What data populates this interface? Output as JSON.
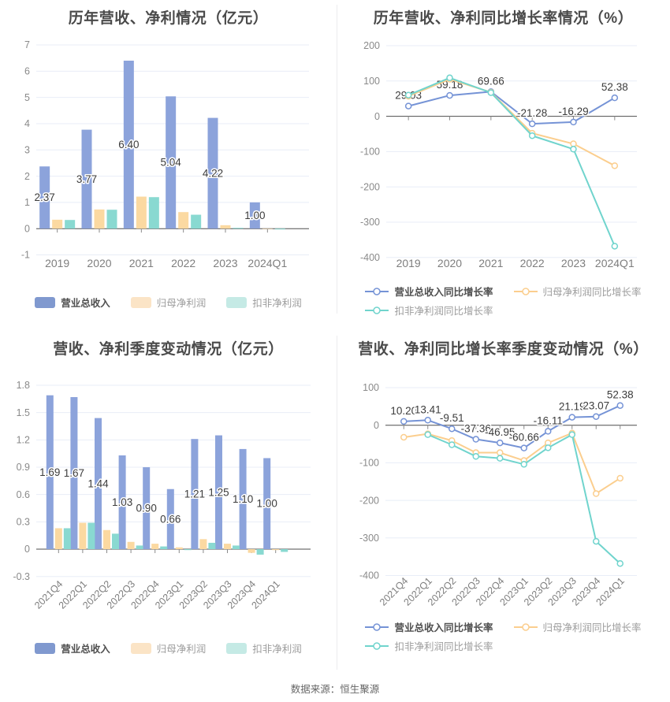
{
  "page": {
    "background": "#ffffff",
    "footer": "数据来源：恒生聚源"
  },
  "colors": {
    "bar_blue": "#8CA3DB",
    "bar_orange": "#FBD9A1",
    "bar_teal": "#89D9D1",
    "line_blue": "#7593D6",
    "line_orange": "#FBCE8E",
    "line_teal": "#70D4CD",
    "legend_blue": "#8099CF",
    "legend_orange_light": "#FBE4C6",
    "legend_teal_light": "#C5EAE5",
    "grid_line": "#E8EDF7",
    "zero_axis": "#4D4D4D",
    "tick_label": "#8A8A8A",
    "category_label": "#7E7E7E",
    "data_label": "#3C3C3C",
    "title_text": "#4A4A4A"
  },
  "chart_data": [
    {
      "id": "yearly-bar",
      "type": "bar",
      "title": "历年营收、净利情况（亿元）",
      "ylabel": "",
      "xlabel": "",
      "grid": true,
      "legend_position": "bottom",
      "categories": [
        "2019",
        "2020",
        "2021",
        "2022",
        "2023",
        "2024Q1"
      ],
      "y_axis": {
        "min": -1,
        "max": 7,
        "step": 1
      },
      "series": [
        {
          "name": "营业总收入",
          "color": "#8CA3DB",
          "legend_color": "#8099CF",
          "labeled": true,
          "values": [
            2.37,
            3.77,
            6.4,
            5.04,
            4.22,
            1.0
          ]
        },
        {
          "name": "归母净利润",
          "color": "#FBD9A1",
          "legend_color": "#FBE4C6",
          "labeled": false,
          "values": [
            0.34,
            0.73,
            1.22,
            0.63,
            0.13,
            -0.01
          ]
        },
        {
          "name": "扣非净利润",
          "color": "#89D9D1",
          "legend_color": "#C5EAE5",
          "labeled": false,
          "values": [
            0.33,
            0.72,
            1.2,
            0.53,
            0.03,
            -0.03
          ]
        }
      ]
    },
    {
      "id": "yearly-growth-line",
      "type": "line",
      "title": "历年营收、净利同比增长率情况（%）",
      "ylabel": "",
      "xlabel": "",
      "grid": true,
      "legend_position": "bottom",
      "categories": [
        "2019",
        "2020",
        "2021",
        "2022",
        "2023",
        "2024Q1"
      ],
      "y_axis": {
        "min": -400,
        "max": 200,
        "step": 100
      },
      "series": [
        {
          "name": "营业总收入同比增长率",
          "color": "#7593D6",
          "labeled": true,
          "values": [
            29.03,
            59.18,
            69.66,
            -21.28,
            -16.29,
            52.38
          ]
        },
        {
          "name": "归母净利润同比增长率",
          "color": "#FBCE8E",
          "labeled": false,
          "values": [
            57,
            105,
            68,
            -48,
            -78,
            -140
          ]
        },
        {
          "name": "扣非净利润同比增长率",
          "color": "#70D4CD",
          "labeled": false,
          "values": [
            60,
            109,
            67,
            -55,
            -93,
            -368
          ]
        }
      ]
    },
    {
      "id": "quarterly-bar",
      "type": "bar",
      "title": "营收、净利季度变动情况（亿元）",
      "ylabel": "",
      "xlabel": "",
      "grid": true,
      "legend_position": "bottom",
      "categories": [
        "2021Q4",
        "2022Q1",
        "2022Q2",
        "2022Q3",
        "2022Q4",
        "2023Q1",
        "2023Q2",
        "2023Q3",
        "2023Q4",
        "2024Q1"
      ],
      "y_axis": {
        "min": -0.3,
        "max": 1.8,
        "step": 0.3
      },
      "series": [
        {
          "name": "营业总收入",
          "color": "#8CA3DB",
          "legend_color": "#8099CF",
          "labeled": true,
          "values": [
            1.69,
            1.67,
            1.44,
            1.03,
            0.9,
            0.66,
            1.21,
            1.25,
            1.1,
            1.0
          ]
        },
        {
          "name": "归母净利润",
          "color": "#FBD9A1",
          "legend_color": "#FBE4C6",
          "labeled": false,
          "values": [
            0.23,
            0.29,
            0.21,
            0.08,
            0.06,
            0.02,
            0.11,
            0.06,
            -0.04,
            -0.01
          ]
        },
        {
          "name": "扣非净利润",
          "color": "#89D9D1",
          "legend_color": "#C5EAE5",
          "labeled": false,
          "values": [
            0.23,
            0.29,
            0.17,
            0.04,
            0.03,
            -0.01,
            0.07,
            0.04,
            -0.06,
            -0.03
          ]
        }
      ]
    },
    {
      "id": "quarterly-growth-line",
      "type": "line",
      "title": "营收、净利同比增长率季度变动情况（%）",
      "ylabel": "",
      "xlabel": "",
      "grid": true,
      "legend_position": "bottom",
      "categories": [
        "2021Q4",
        "2022Q1",
        "2022Q2",
        "2022Q3",
        "2022Q4",
        "2023Q1",
        "2023Q2",
        "2023Q3",
        "2023Q4",
        "2024Q1"
      ],
      "y_axis": {
        "min": -400,
        "max": 100,
        "step": 100
      },
      "series": [
        {
          "name": "营业总收入同比增长率",
          "color": "#7593D6",
          "labeled": true,
          "values": [
            10.2,
            13.41,
            -9.51,
            -37.36,
            -46.95,
            -60.66,
            -16.11,
            21.19,
            23.07,
            52.38
          ]
        },
        {
          "name": "归母净利润同比增长率",
          "color": "#FBCE8E",
          "labeled": false,
          "values": [
            -32,
            -23,
            -41,
            -73,
            -73,
            -94,
            -47,
            -21,
            -182,
            -141
          ]
        },
        {
          "name": "扣非净利润同比增长率",
          "color": "#70D4CD",
          "labeled": false,
          "values": [
            null,
            -25,
            -52,
            -83,
            -88,
            -104,
            -60,
            -25,
            -309,
            -368
          ]
        }
      ]
    }
  ]
}
